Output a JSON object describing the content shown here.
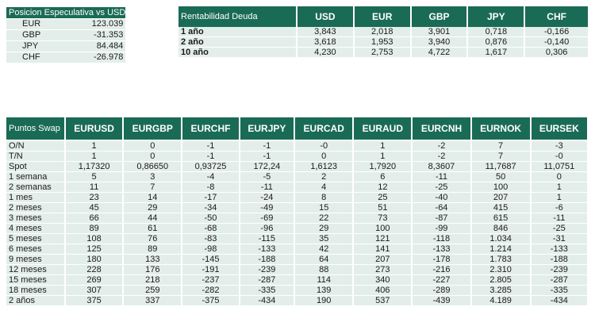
{
  "posicion": {
    "title": "Posicion Especulativa vs USD",
    "rows": [
      {
        "label": "EUR",
        "value": "123.039"
      },
      {
        "label": "GBP",
        "value": "-31.353"
      },
      {
        "label": "JPY",
        "value": "84.484"
      },
      {
        "label": "CHF",
        "value": "-26.978"
      }
    ]
  },
  "rentabilidad": {
    "title": "Rentabilidad Deuda",
    "headers": [
      "USD",
      "EUR",
      "GBP",
      "JPY",
      "CHF"
    ],
    "rows": [
      {
        "label": "1 año",
        "values": [
          "3,843",
          "2,018",
          "3,901",
          "0,718",
          "-0,166"
        ]
      },
      {
        "label": "2 año",
        "values": [
          "3,618",
          "1,953",
          "3,940",
          "0,876",
          "-0,140"
        ]
      },
      {
        "label": "10 año",
        "values": [
          "4,230",
          "2,753",
          "4,722",
          "1,617",
          "0,306"
        ]
      }
    ]
  },
  "swap": {
    "title": "Puntos Swap",
    "headers": [
      "EURUSD",
      "EURGBP",
      "EURCHF",
      "EURJPY",
      "EURCAD",
      "EURAUD",
      "EURCNH",
      "EURNOK",
      "EURSEK"
    ],
    "rows": [
      {
        "label": "O/N",
        "values": [
          "1",
          "0",
          "-1",
          "-1",
          "-0",
          "1",
          "-2",
          "7",
          "-3"
        ]
      },
      {
        "label": "T/N",
        "values": [
          "1",
          "0",
          "-1",
          "-1",
          "0",
          "1",
          "-2",
          "7",
          "-0"
        ]
      },
      {
        "label": "Spot",
        "values": [
          "1,17320",
          "0,86650",
          "0,93725",
          "172,24",
          "1,6123",
          "1,7920",
          "8,3607",
          "11,7687",
          "11,0751"
        ]
      },
      {
        "label": "1 semana",
        "values": [
          "5",
          "3",
          "-4",
          "-5",
          "2",
          "6",
          "-11",
          "50",
          "0"
        ]
      },
      {
        "label": "2 semanas",
        "values": [
          "11",
          "7",
          "-8",
          "-11",
          "4",
          "12",
          "-25",
          "100",
          "1"
        ]
      },
      {
        "label": "1 mes",
        "values": [
          "23",
          "14",
          "-17",
          "-24",
          "8",
          "25",
          "-40",
          "207",
          "1"
        ]
      },
      {
        "label": "2 meses",
        "values": [
          "45",
          "29",
          "-34",
          "-49",
          "15",
          "51",
          "-64",
          "415",
          "-6"
        ]
      },
      {
        "label": "3 meses",
        "values": [
          "66",
          "44",
          "-50",
          "-69",
          "22",
          "73",
          "-87",
          "615",
          "-11"
        ]
      },
      {
        "label": "4 meses",
        "values": [
          "89",
          "61",
          "-68",
          "-96",
          "29",
          "100",
          "-99",
          "846",
          "-25"
        ]
      },
      {
        "label": "5 meses",
        "values": [
          "108",
          "76",
          "-83",
          "-115",
          "35",
          "121",
          "-118",
          "1.034",
          "-31"
        ]
      },
      {
        "label": "6 meses",
        "values": [
          "125",
          "89",
          "-98",
          "-133",
          "42",
          "141",
          "-133",
          "1.214",
          "-133"
        ]
      },
      {
        "label": "9 meses",
        "values": [
          "180",
          "133",
          "-145",
          "-188",
          "64",
          "207",
          "-178",
          "1.783",
          "-188"
        ]
      },
      {
        "label": "12 meses",
        "values": [
          "228",
          "176",
          "-191",
          "-239",
          "88",
          "273",
          "-216",
          "2.310",
          "-239"
        ]
      },
      {
        "label": "15 meses",
        "values": [
          "269",
          "218",
          "-237",
          "-287",
          "114",
          "340",
          "-227",
          "2.805",
          "-287"
        ]
      },
      {
        "label": "18 meses",
        "values": [
          "307",
          "259",
          "-282",
          "-335",
          "139",
          "406",
          "-289",
          "3.285",
          "-335"
        ]
      },
      {
        "label": "2 años",
        "values": [
          "375",
          "337",
          "-375",
          "-434",
          "190",
          "537",
          "-439",
          "4.189",
          "-434"
        ]
      }
    ]
  }
}
